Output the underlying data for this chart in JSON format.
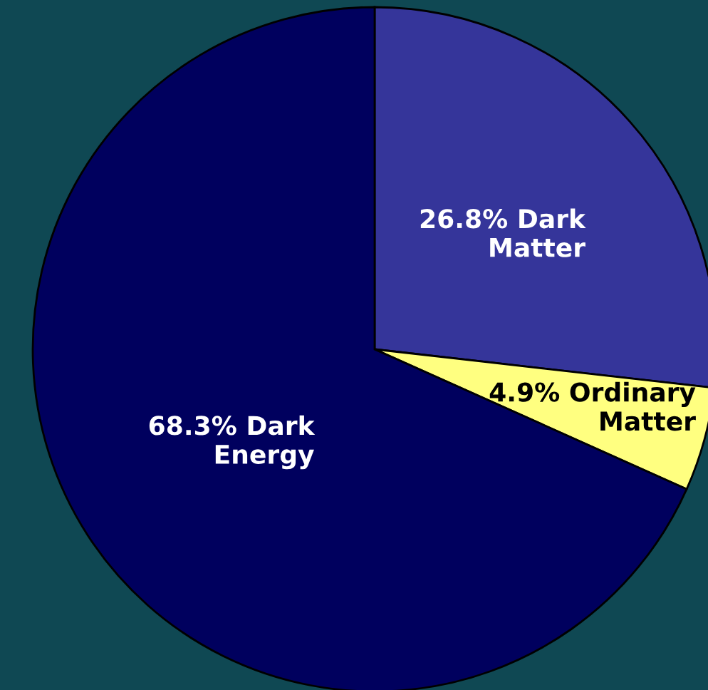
{
  "chart_data": {
    "type": "pie",
    "categories": [
      "26.8% Dark\nMatter",
      "4.9% Ordinary\nMatter",
      "68.3% Dark\nEnergy"
    ],
    "values": [
      26.8,
      4.9,
      68.3
    ],
    "colors": [
      "#35359a",
      "#ffff80",
      "#00005e"
    ]
  }
}
